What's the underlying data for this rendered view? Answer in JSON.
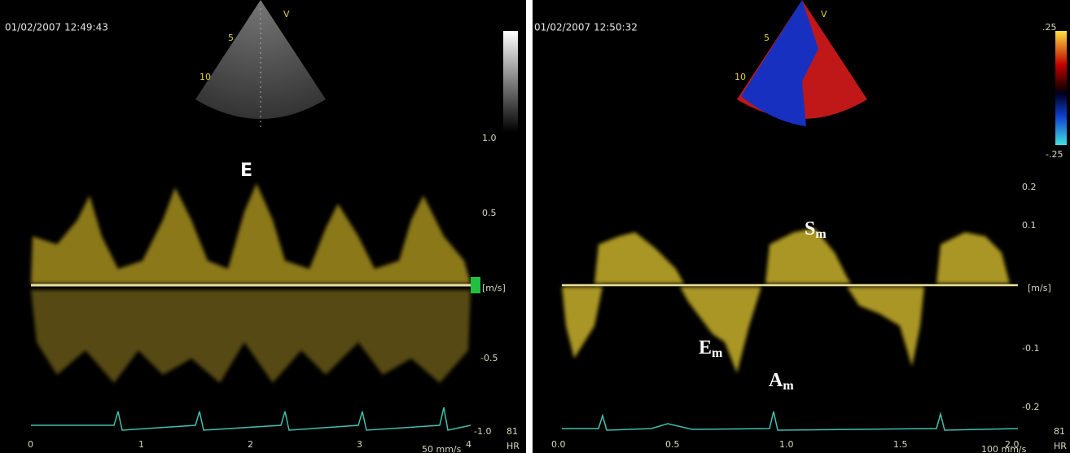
{
  "left_panel": {
    "timestamp": "01/02/2007 12:49:43",
    "sector_labels": [
      "V",
      "5",
      "10"
    ],
    "velocity_ticks": [
      "1.0",
      "0.5",
      "[m/s]",
      "-0.5",
      "-1.0"
    ],
    "heart_rate": "81",
    "hr_label": "HR",
    "time_ticks": [
      "0",
      "1",
      "2",
      "3",
      "4"
    ],
    "sweep_speed": "50 mm/s",
    "annotation": "E"
  },
  "right_panel": {
    "timestamp": "01/02/2007 12:50:32",
    "sector_labels": [
      "V",
      "5",
      "10"
    ],
    "color_scale": [
      ".25",
      "-.25"
    ],
    "velocity_ticks": [
      "0.2",
      "0.1",
      "[m/s]",
      "-0.1",
      "-0.2"
    ],
    "heart_rate": "81",
    "hr_label": "HR",
    "time_ticks": [
      "0.0",
      "0.5",
      "1.0",
      "1.5",
      "2.0"
    ],
    "sweep_speed": "100 mm/s",
    "annotations": [
      {
        "letter": "S",
        "sub": "m"
      },
      {
        "letter": "E",
        "sub": "m"
      },
      {
        "letter": "A",
        "sub": "m"
      }
    ]
  }
}
